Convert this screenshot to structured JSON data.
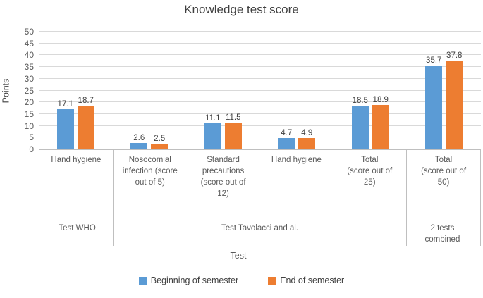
{
  "title": "Knowledge test score",
  "colors": {
    "series_beginning": "#5B9BD5",
    "series_end": "#ED7D31",
    "gridline": "#D9D9D9",
    "axis_line": "#BFBFBF",
    "title_text": "#404040",
    "axis_text": "#595959"
  },
  "chart_data": {
    "type": "bar",
    "title": "Knowledge test score",
    "xlabel": "Test",
    "ylabel": "Points",
    "ylim": [
      0,
      50
    ],
    "yticks": [
      0,
      5,
      10,
      15,
      20,
      25,
      30,
      35,
      40,
      45,
      50
    ],
    "grid": true,
    "legend_position": "bottom",
    "categories": [
      {
        "label": "Hand hygiene",
        "lines": [
          "Hand hygiene"
        ],
        "group": "Test WHO"
      },
      {
        "label": "Nosocomial infection (score out of 5)",
        "lines": [
          "Nosocomial",
          "infection (score",
          "out of 5)"
        ],
        "group": "Test Tavolacci and al."
      },
      {
        "label": "Standard precautions (score out of 12)",
        "lines": [
          "Standard",
          "precautions",
          "(score out of",
          "12)"
        ],
        "group": "Test Tavolacci and al."
      },
      {
        "label": "Hand hygiene",
        "lines": [
          "Hand hygiene"
        ],
        "group": "Test Tavolacci and al."
      },
      {
        "label": "Total (score out of 25)",
        "lines": [
          "Total",
          "(score out of",
          "25)"
        ],
        "group": "Test Tavolacci and al."
      },
      {
        "label": "Total (score out of 50)",
        "lines": [
          "Total",
          "(score out of",
          "50)"
        ],
        "group": "2 tests combined"
      }
    ],
    "groups": [
      {
        "label": "Test WHO",
        "lines": [
          "Test WHO"
        ],
        "span": 1
      },
      {
        "label": "Test Tavolacci and al.",
        "lines": [
          "Test Tavolacci and al."
        ],
        "span": 4
      },
      {
        "label": "2 tests combined",
        "lines": [
          "2 tests",
          "combined"
        ],
        "span": 1
      }
    ],
    "series": [
      {
        "name": "Beginning of semester",
        "color": "#5B9BD5",
        "values": [
          17.1,
          2.6,
          11.1,
          4.7,
          18.5,
          35.7
        ]
      },
      {
        "name": "End of semester",
        "color": "#ED7D31",
        "values": [
          18.7,
          2.5,
          11.5,
          4.9,
          18.9,
          37.8
        ]
      }
    ]
  }
}
